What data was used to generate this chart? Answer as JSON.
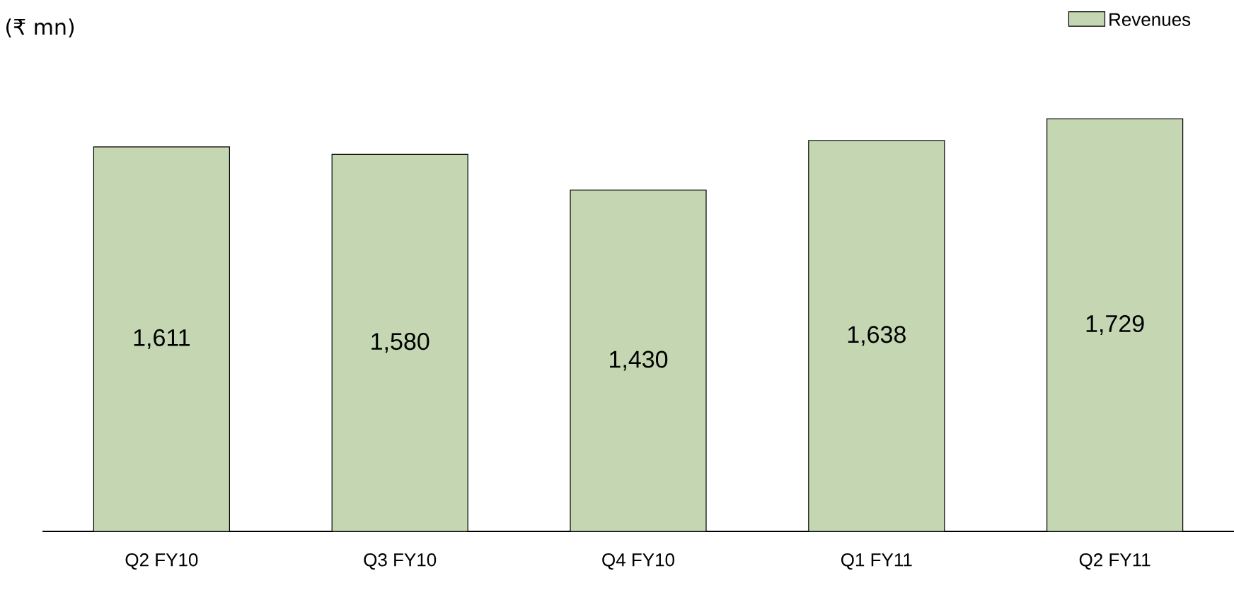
{
  "chart_data": {
    "type": "bar",
    "ylabel": "(₹ mn)",
    "categories": [
      "Q2 FY10",
      "Q3 FY10",
      "Q4 FY10",
      "Q1 FY11",
      "Q2 FY11"
    ],
    "series": [
      {
        "name": "Revenues",
        "color": "#c4d7b2",
        "values": [
          1611,
          1580,
          1430,
          1638,
          1729
        ],
        "value_labels": [
          "1,611",
          "1,580",
          "1,430",
          "1,638",
          "1,729"
        ]
      }
    ],
    "legend": "top right"
  }
}
